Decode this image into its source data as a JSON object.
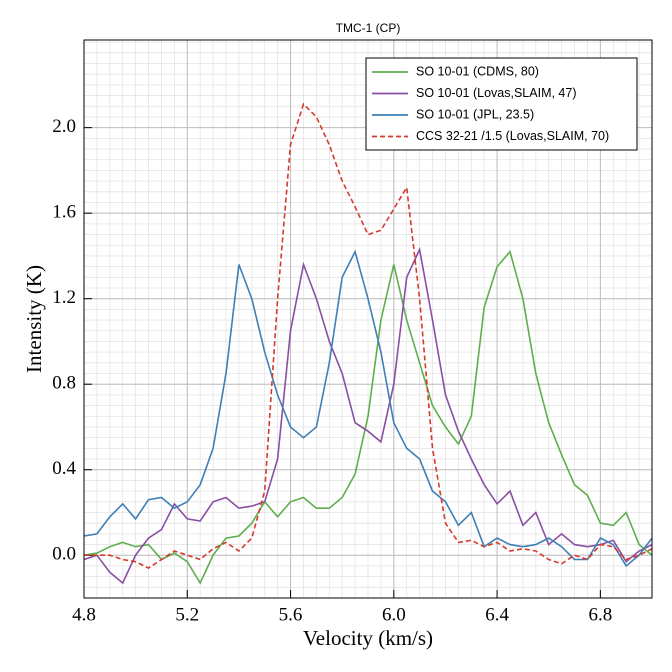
{
  "chart_data": {
    "type": "line",
    "title": "TMC-1 (CP)",
    "x_label": "Velocity (km/s)",
    "y_label": "Intensity (K)",
    "x": [
      4.8,
      4.85,
      4.9,
      4.95,
      5.0,
      5.05,
      5.1,
      5.15,
      5.2,
      5.25,
      5.3,
      5.35,
      5.4,
      5.45,
      5.5,
      5.55,
      5.6,
      5.65,
      5.7,
      5.75,
      5.8,
      5.85,
      5.9,
      5.95,
      6.0,
      6.05,
      6.1,
      6.15,
      6.2,
      6.25,
      6.3,
      6.35,
      6.4,
      6.45,
      6.5,
      6.55,
      6.6,
      6.65,
      6.7,
      6.75,
      6.8,
      6.85,
      6.9,
      6.95,
      7.0
    ],
    "series": [
      {
        "name": "SO 10-01 (CDMS, 80)",
        "color": "#5fae4e",
        "dash": false,
        "values": [
          0.0,
          0.01,
          0.04,
          0.06,
          0.04,
          0.05,
          -0.02,
          0.01,
          -0.03,
          -0.13,
          0.0,
          0.08,
          0.09,
          0.15,
          0.25,
          0.18,
          0.25,
          0.27,
          0.22,
          0.22,
          0.27,
          0.38,
          0.65,
          1.1,
          1.36,
          1.1,
          0.9,
          0.7,
          0.6,
          0.52,
          0.65,
          1.16,
          1.35,
          1.42,
          1.2,
          0.85,
          0.62,
          0.47,
          0.33,
          0.28,
          0.15,
          0.14,
          0.2,
          0.05,
          0.0
        ]
      },
      {
        "name": "SO 10-01 (Lovas,SLAIM, 47)",
        "color": "#8a4fa3",
        "dash": false,
        "values": [
          -0.02,
          0.0,
          -0.08,
          -0.13,
          0.0,
          0.08,
          0.12,
          0.24,
          0.17,
          0.16,
          0.25,
          0.27,
          0.22,
          0.23,
          0.25,
          0.45,
          1.05,
          1.36,
          1.2,
          1.0,
          0.85,
          0.62,
          0.58,
          0.53,
          0.8,
          1.3,
          1.43,
          1.1,
          0.75,
          0.58,
          0.45,
          0.33,
          0.24,
          0.3,
          0.14,
          0.2,
          0.05,
          0.1,
          0.05,
          0.04,
          0.05,
          0.07,
          -0.03,
          0.02,
          0.05
        ]
      },
      {
        "name": "SO 10-01 (JPL, 23.5)",
        "color": "#3f7fb8",
        "dash": false,
        "values": [
          0.09,
          0.1,
          0.18,
          0.24,
          0.17,
          0.26,
          0.27,
          0.22,
          0.25,
          0.33,
          0.5,
          0.85,
          1.36,
          1.2,
          0.95,
          0.75,
          0.6,
          0.55,
          0.6,
          0.9,
          1.3,
          1.42,
          1.2,
          0.95,
          0.62,
          0.5,
          0.45,
          0.3,
          0.25,
          0.14,
          0.2,
          0.04,
          0.08,
          0.05,
          0.04,
          0.05,
          0.08,
          0.04,
          -0.02,
          -0.02,
          0.08,
          0.05,
          -0.05,
          0.0,
          0.08
        ]
      },
      {
        "name": "CCS 32-21 /1.5 (Lovas,SLAIM, 70)",
        "color": "#d63a2a",
        "dash": true,
        "values": [
          0.0,
          0.0,
          0.0,
          -0.02,
          -0.03,
          -0.06,
          -0.02,
          0.02,
          0.0,
          -0.02,
          0.03,
          0.06,
          0.02,
          0.08,
          0.3,
          1.2,
          1.92,
          2.11,
          2.05,
          1.92,
          1.75,
          1.63,
          1.5,
          1.52,
          1.62,
          1.72,
          1.2,
          0.5,
          0.15,
          0.06,
          0.07,
          0.04,
          0.06,
          0.02,
          0.03,
          0.02,
          -0.02,
          -0.04,
          0.0,
          -0.02,
          0.05,
          0.04,
          -0.02,
          0.0,
          0.03
        ]
      }
    ],
    "xlim": [
      4.8,
      7.0
    ],
    "xticks": [
      4.8,
      5.2,
      5.6,
      {
        "value": 6,
        "label": "6.0"
      },
      6.4,
      6.8
    ],
    "ylim": [
      -0.2,
      2.41
    ],
    "yticks": [
      {
        "value": 0,
        "label": "0.0"
      },
      0.4,
      0.8,
      1.2,
      1.6,
      {
        "value": 2,
        "label": "2.0"
      }
    ],
    "grid": true,
    "legend": "upper right"
  }
}
